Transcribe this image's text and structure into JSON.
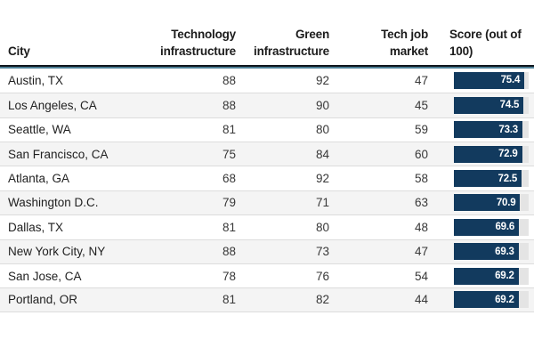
{
  "colors": {
    "bar_fill": "#123a5e",
    "bar_track": "#e4e4e4",
    "header_rule_top": "#10161c",
    "header_rule_bottom": "#4d7f96",
    "alt_row": "#f4f4f4",
    "row_separator": "#dcdcdc",
    "header_text": "#1c1c1c",
    "cell_text": "#383838"
  },
  "chart_data": {
    "type": "table",
    "title": "",
    "columns": [
      {
        "id": "city",
        "label": "City",
        "align": "left"
      },
      {
        "id": "tech_infrastructure",
        "label": "Technology\ninfrastructure",
        "align": "right"
      },
      {
        "id": "green_infrastructure",
        "label": "Green\ninfrastructure",
        "align": "right"
      },
      {
        "id": "tech_job_market",
        "label": "Tech job\nmarket",
        "align": "right"
      },
      {
        "id": "score",
        "label": "Score (out of\n100)",
        "align": "left"
      }
    ],
    "rows": [
      {
        "city": "Austin, TX",
        "tech_infrastructure": 88,
        "green_infrastructure": 92,
        "tech_job_market": 47,
        "score": 75.4
      },
      {
        "city": "Los Angeles, CA",
        "tech_infrastructure": 88,
        "green_infrastructure": 90,
        "tech_job_market": 45,
        "score": 74.5
      },
      {
        "city": "Seattle, WA",
        "tech_infrastructure": 81,
        "green_infrastructure": 80,
        "tech_job_market": 59,
        "score": 73.3
      },
      {
        "city": "San Francisco, CA",
        "tech_infrastructure": 75,
        "green_infrastructure": 84,
        "tech_job_market": 60,
        "score": 72.9
      },
      {
        "city": "Atlanta, GA",
        "tech_infrastructure": 68,
        "green_infrastructure": 92,
        "tech_job_market": 58,
        "score": 72.5
      },
      {
        "city": "Washington D.C.",
        "tech_infrastructure": 79,
        "green_infrastructure": 71,
        "tech_job_market": 63,
        "score": 70.9
      },
      {
        "city": "Dallas, TX",
        "tech_infrastructure": 81,
        "green_infrastructure": 80,
        "tech_job_market": 48,
        "score": 69.6
      },
      {
        "city": "New York City, NY",
        "tech_infrastructure": 88,
        "green_infrastructure": 73,
        "tech_job_market": 47,
        "score": 69.3
      },
      {
        "city": "San Jose, CA",
        "tech_infrastructure": 78,
        "green_infrastructure": 76,
        "tech_job_market": 54,
        "score": 69.2
      },
      {
        "city": "Portland, OR",
        "tech_infrastructure": 81,
        "green_infrastructure": 82,
        "tech_job_market": 44,
        "score": 69.2
      }
    ],
    "score_bar": {
      "max_scale": 80,
      "note": "filled navy bar with white right-aligned value over light gray track"
    },
    "layout_hints": {
      "score_decimals": 1,
      "alternating_rows": true,
      "legend": "none",
      "grid": "horizontal separators only"
    }
  }
}
